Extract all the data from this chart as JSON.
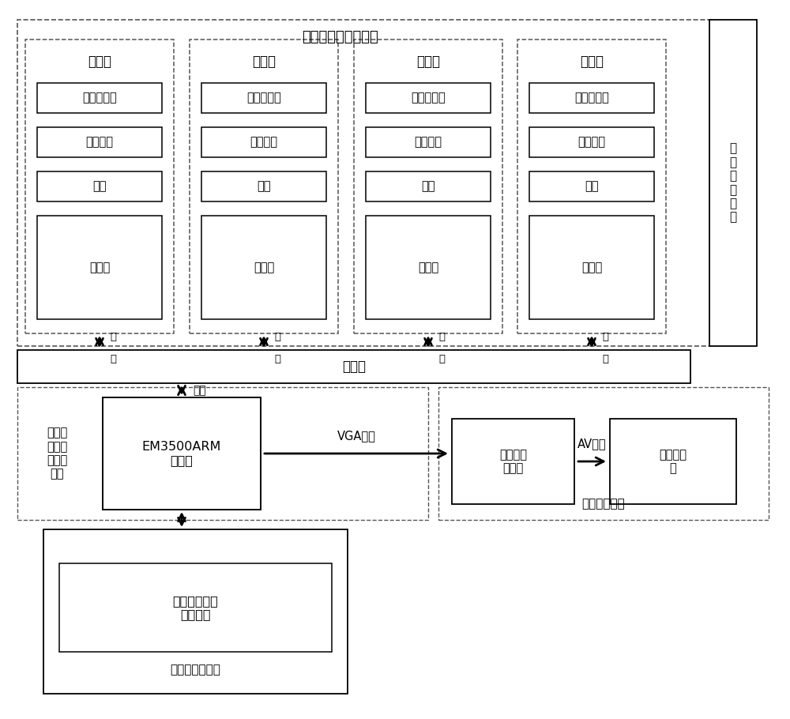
{
  "title": "四通道图像采集模块",
  "bg_color": "#ffffff",
  "channels": [
    "通道一",
    "通道二",
    "通道三",
    "通道四"
  ],
  "channel_items": [
    "蓝色滤光片",
    "偏振单元",
    "镜头",
    "摄像机"
  ],
  "router_label": "路由器",
  "net_label": "网\n口",
  "camera_mount_label": "摄\n像\n机\n安\n装\n架",
  "device_driver_label": "设备驱\n动及数\n据存储\n模块",
  "arm_board_label": "EM3500ARM\n开发板",
  "vga_label": "VGA信号",
  "video_converter_label": "视频信号\n转换器",
  "av_label": "AV信号",
  "small_display_label": "小型显示\n器",
  "image_monitor_label": "图像监控模块",
  "sky_polarization_label": "天空偏振信息\n检测软件",
  "data_computer_label": "数据处理计算机",
  "network_port_label": "网口",
  "network_port_label2": "网\n口"
}
